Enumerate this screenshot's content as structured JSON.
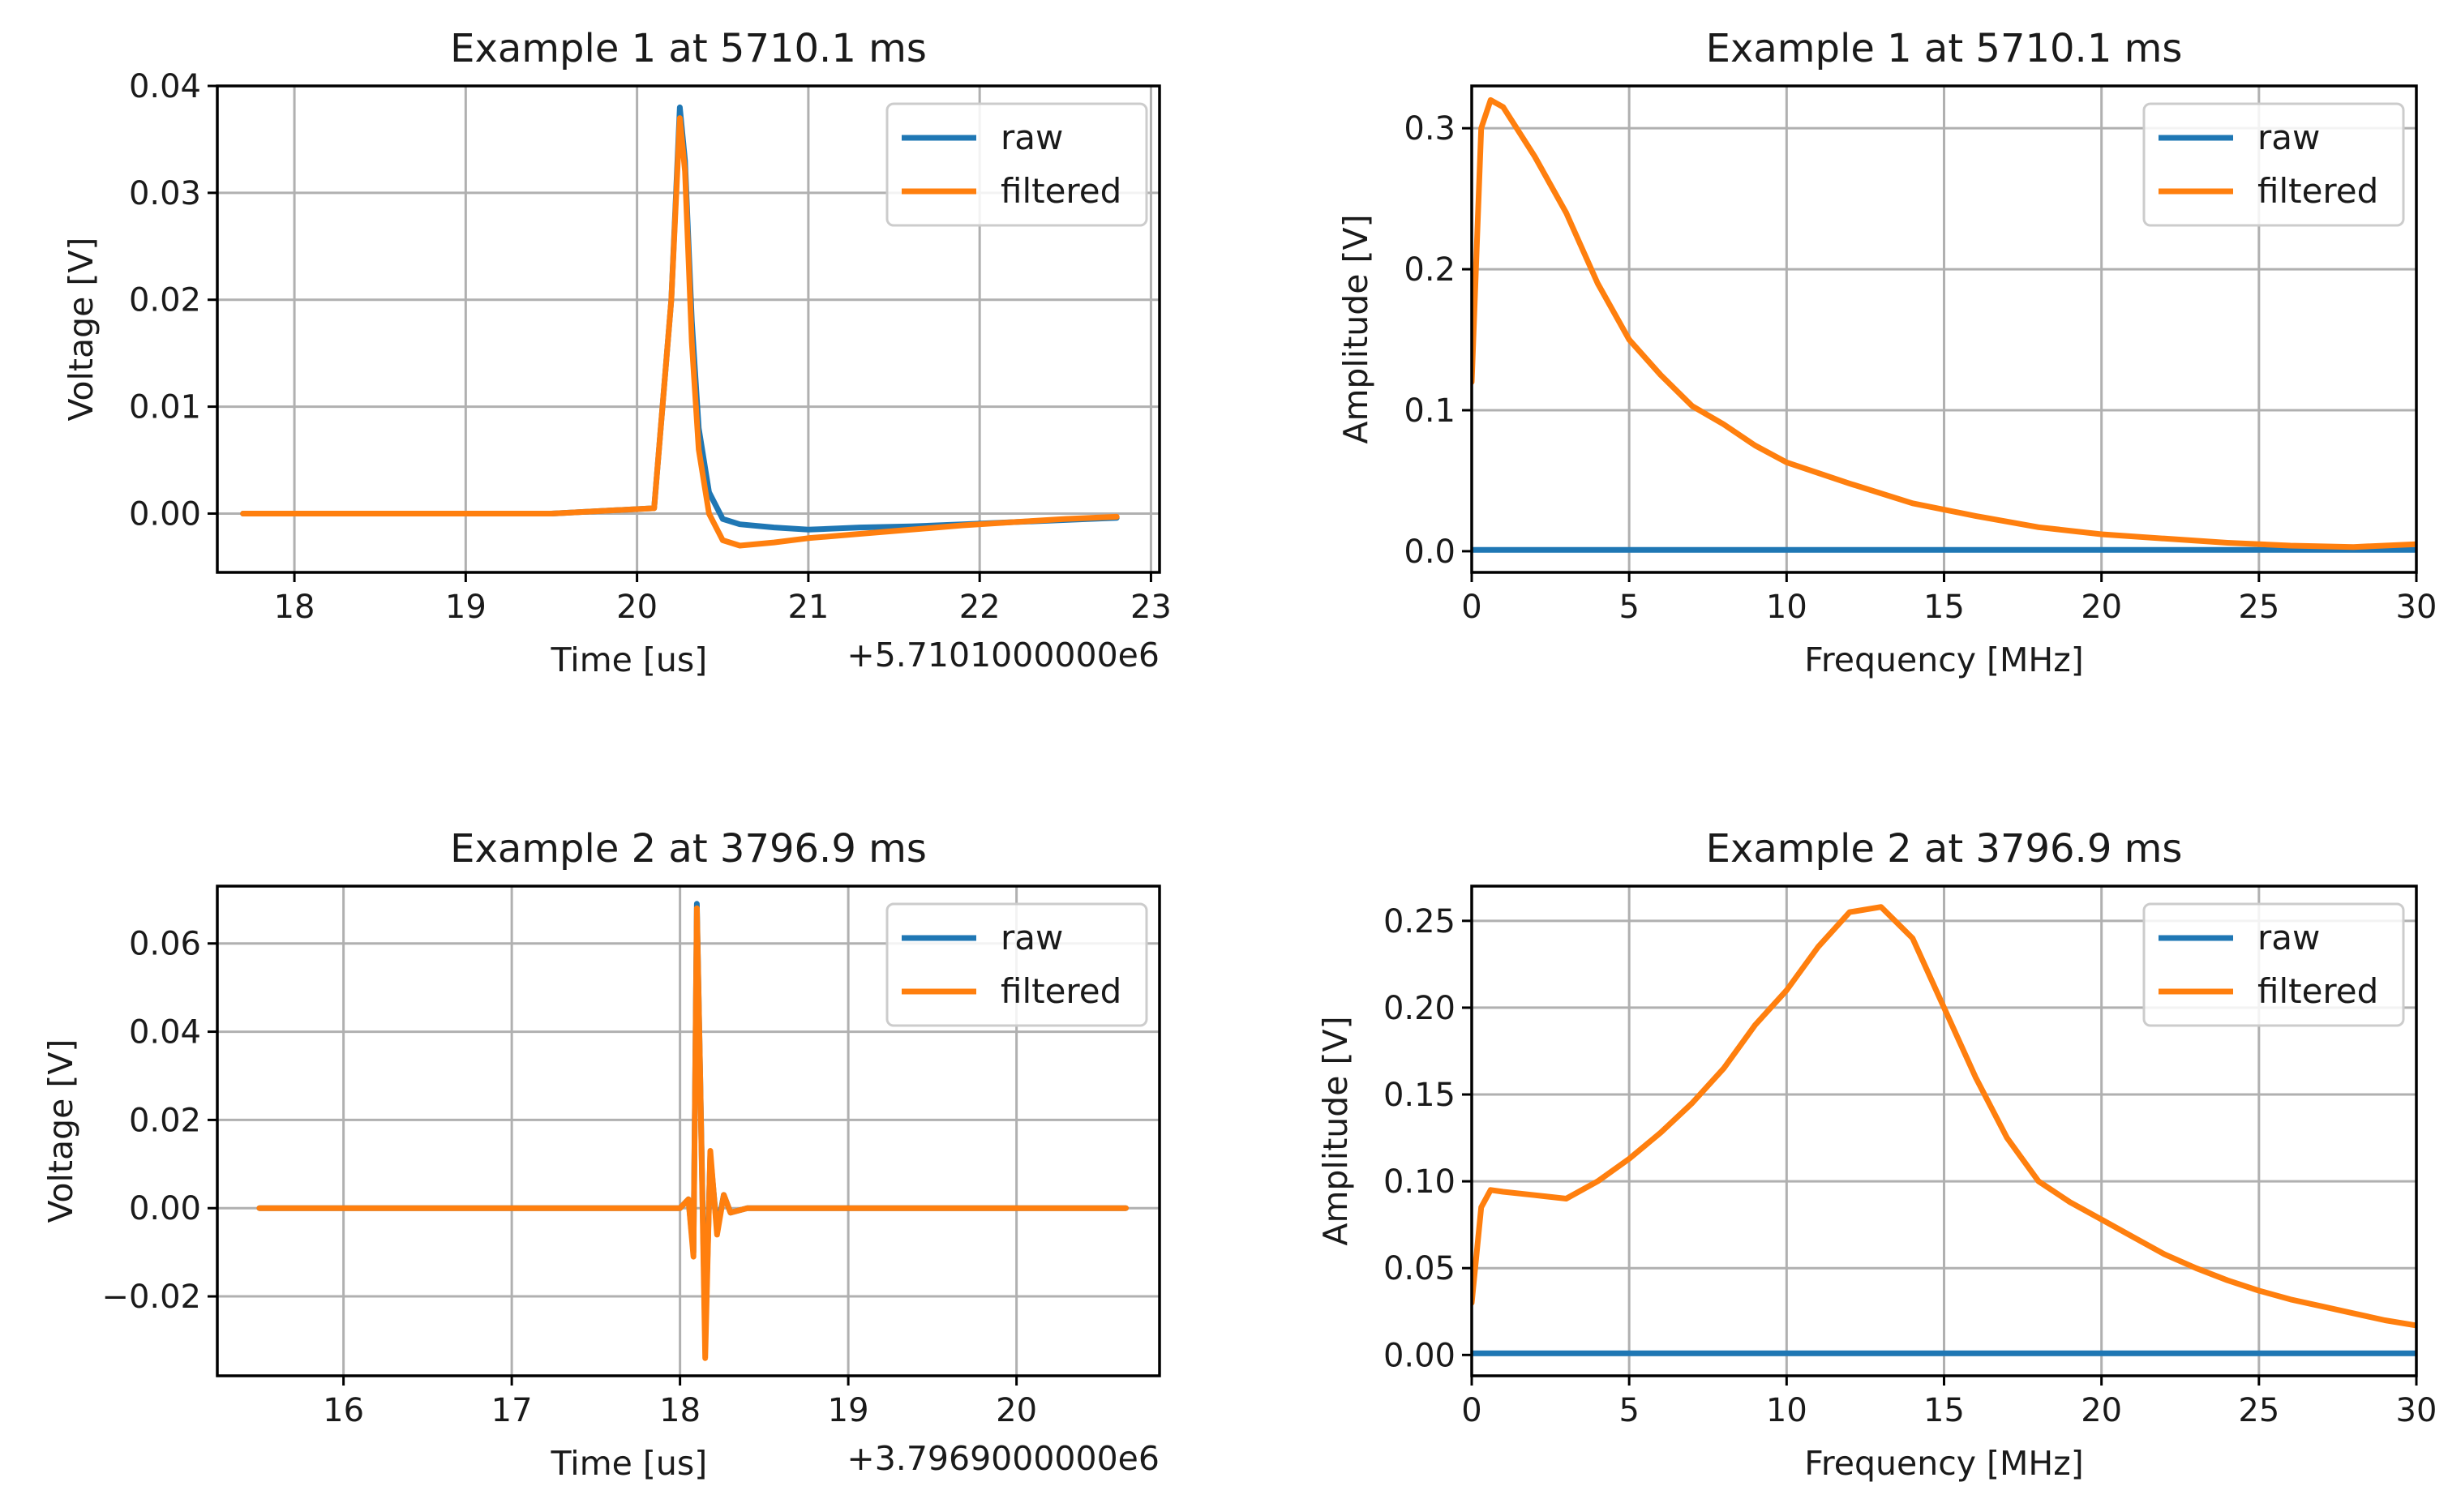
{
  "colors": {
    "raw": "#1f77b4",
    "filtered": "#ff7f0e"
  },
  "chart_data": [
    {
      "id": "p1",
      "type": "line",
      "title": "Example 1 at 5710.1 ms",
      "xlabel": "Time [us]",
      "ylabel": "Voltage [V]",
      "offset_text": "+5.7101000000e6",
      "xlim": [
        17.55,
        23.05
      ],
      "ylim": [
        -0.0055,
        0.04
      ],
      "xticks": [
        18,
        19,
        20,
        21,
        22,
        23
      ],
      "xtick_labels": [
        "18",
        "19",
        "20",
        "21",
        "22",
        "23"
      ],
      "yticks": [
        0.0,
        0.01,
        0.02,
        0.03,
        0.04
      ],
      "ytick_labels": [
        "0.00",
        "0.01",
        "0.02",
        "0.03",
        "0.04"
      ],
      "legend": [
        "raw",
        "filtered"
      ],
      "series": [
        {
          "name": "raw",
          "x": [
            17.7,
            18.5,
            19.5,
            20.1,
            20.2,
            20.25,
            20.28,
            20.32,
            20.36,
            20.42,
            20.5,
            20.6,
            20.8,
            21.0,
            21.3,
            21.6,
            21.9,
            22.2,
            22.5,
            22.8
          ],
          "y": [
            0,
            0,
            0,
            0.0005,
            0.02,
            0.038,
            0.033,
            0.018,
            0.008,
            0.002,
            -0.0005,
            -0.001,
            -0.0013,
            -0.0015,
            -0.0013,
            -0.0012,
            -0.001,
            -0.0008,
            -0.0006,
            -0.0004
          ]
        },
        {
          "name": "filtered",
          "x": [
            17.7,
            18.5,
            19.5,
            20.1,
            20.2,
            20.25,
            20.28,
            20.32,
            20.36,
            20.42,
            20.5,
            20.6,
            20.8,
            21.0,
            21.3,
            21.6,
            21.9,
            22.2,
            22.5,
            22.8
          ],
          "y": [
            0,
            0,
            0,
            0.0005,
            0.02,
            0.037,
            0.032,
            0.016,
            0.006,
            0.0,
            -0.0025,
            -0.003,
            -0.0027,
            -0.0023,
            -0.0019,
            -0.0015,
            -0.0011,
            -0.0008,
            -0.0005,
            -0.0003
          ]
        }
      ]
    },
    {
      "id": "p2",
      "type": "line",
      "title": "Example 1 at 5710.1 ms",
      "xlabel": "Frequency [MHz]",
      "ylabel": "Amplitude [V]",
      "offset_text": "",
      "xlim": [
        0,
        30
      ],
      "ylim": [
        -0.015,
        0.33
      ],
      "xticks": [
        0,
        5,
        10,
        15,
        20,
        25,
        30
      ],
      "xtick_labels": [
        "0",
        "5",
        "10",
        "15",
        "20",
        "25",
        "30"
      ],
      "yticks": [
        0.0,
        0.1,
        0.2,
        0.3
      ],
      "ytick_labels": [
        "0.0",
        "0.1",
        "0.2",
        "0.3"
      ],
      "legend": [
        "raw",
        "filtered"
      ],
      "series": [
        {
          "name": "raw",
          "x": [
            0,
            30
          ],
          "y": [
            0.001,
            0.001
          ]
        },
        {
          "name": "filtered",
          "x": [
            0,
            0.3,
            0.6,
            1,
            2,
            3,
            4,
            5,
            6,
            7,
            8,
            9,
            10,
            12,
            14,
            16,
            18,
            20,
            22,
            24,
            26,
            28,
            30
          ],
          "y": [
            0.12,
            0.3,
            0.32,
            0.315,
            0.28,
            0.24,
            0.19,
            0.15,
            0.125,
            0.103,
            0.09,
            0.075,
            0.063,
            0.048,
            0.034,
            0.025,
            0.017,
            0.012,
            0.009,
            0.006,
            0.004,
            0.003,
            0.005
          ]
        }
      ]
    },
    {
      "id": "p3",
      "type": "line",
      "title": "Example 2 at 3796.9 ms",
      "xlabel": "Time [us]",
      "ylabel": "Voltage [V]",
      "offset_text": "+3.7969000000e6",
      "xlim": [
        15.25,
        20.85
      ],
      "ylim": [
        -0.038,
        0.073
      ],
      "xticks": [
        16,
        17,
        18,
        19,
        20
      ],
      "xtick_labels": [
        "16",
        "17",
        "18",
        "19",
        "20"
      ],
      "yticks": [
        -0.02,
        0.0,
        0.02,
        0.04,
        0.06
      ],
      "ytick_labels": [
        "−0.02",
        "0.00",
        "0.02",
        "0.04",
        "0.06"
      ],
      "legend": [
        "raw",
        "filtered"
      ],
      "series": [
        {
          "name": "raw",
          "x": [
            15.5,
            16.5,
            17.5,
            18.0,
            18.05,
            18.08,
            18.1,
            18.12,
            18.15,
            18.18,
            18.22,
            18.26,
            18.3,
            18.4,
            18.6,
            19.0,
            19.5,
            20.0,
            20.65
          ],
          "y": [
            0,
            0,
            0,
            0,
            0.002,
            -0.01,
            0.069,
            0.03,
            -0.03,
            0.012,
            -0.005,
            0.003,
            -0.001,
            0,
            0,
            0,
            0,
            0,
            0
          ]
        },
        {
          "name": "filtered",
          "x": [
            15.5,
            16.5,
            17.5,
            18.0,
            18.05,
            18.08,
            18.1,
            18.12,
            18.15,
            18.18,
            18.22,
            18.26,
            18.3,
            18.4,
            18.6,
            19.0,
            19.5,
            20.0,
            20.65
          ],
          "y": [
            0,
            0,
            0,
            0,
            0.002,
            -0.011,
            0.068,
            0.03,
            -0.034,
            0.013,
            -0.006,
            0.003,
            -0.001,
            0,
            0,
            0,
            0,
            0,
            0
          ]
        }
      ]
    },
    {
      "id": "p4",
      "type": "line",
      "title": "Example 2 at 3796.9 ms",
      "xlabel": "Frequency [MHz]",
      "ylabel": "Amplitude [V]",
      "offset_text": "",
      "xlim": [
        0,
        30
      ],
      "ylim": [
        -0.012,
        0.27
      ],
      "xticks": [
        0,
        5,
        10,
        15,
        20,
        25,
        30
      ],
      "xtick_labels": [
        "0",
        "5",
        "10",
        "15",
        "20",
        "25",
        "30"
      ],
      "yticks": [
        0.0,
        0.05,
        0.1,
        0.15,
        0.2,
        0.25
      ],
      "ytick_labels": [
        "0.00",
        "0.05",
        "0.10",
        "0.15",
        "0.20",
        "0.25"
      ],
      "legend": [
        "raw",
        "filtered"
      ],
      "series": [
        {
          "name": "raw",
          "x": [
            0,
            30
          ],
          "y": [
            0.001,
            0.001
          ]
        },
        {
          "name": "filtered",
          "x": [
            0,
            0.3,
            0.6,
            1,
            2,
            3,
            4,
            5,
            6,
            7,
            8,
            9,
            10,
            11,
            12,
            13,
            14,
            15,
            16,
            17,
            18,
            19,
            20,
            21,
            22,
            23,
            24,
            25,
            26,
            27,
            28,
            29,
            30
          ],
          "y": [
            0.03,
            0.085,
            0.095,
            0.094,
            0.092,
            0.09,
            0.1,
            0.113,
            0.128,
            0.145,
            0.165,
            0.19,
            0.21,
            0.235,
            0.255,
            0.258,
            0.24,
            0.2,
            0.16,
            0.125,
            0.1,
            0.088,
            0.078,
            0.068,
            0.058,
            0.05,
            0.043,
            0.037,
            0.032,
            0.028,
            0.024,
            0.02,
            0.017
          ]
        }
      ]
    }
  ]
}
